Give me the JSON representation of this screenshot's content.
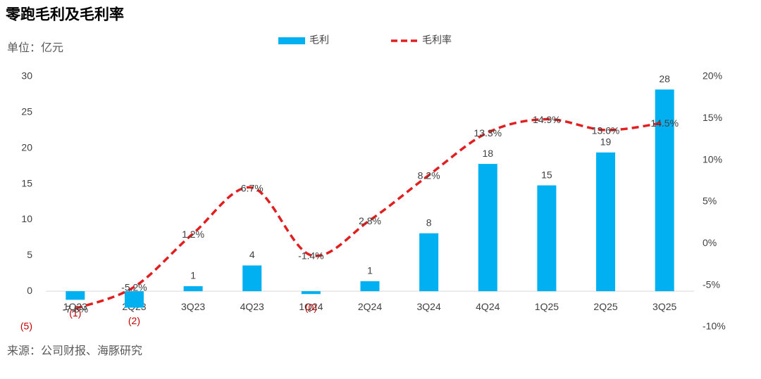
{
  "chart_data": {
    "type": "bar-line",
    "title": "零跑毛利及毛利率",
    "unit_label": "单位：亿元",
    "source": "来源：公司财报、海豚研究",
    "categories": [
      "1Q23",
      "2Q23",
      "3Q23",
      "4Q23",
      "1Q24",
      "2Q24",
      "3Q24",
      "4Q24",
      "1Q25",
      "2Q25",
      "3Q25"
    ],
    "series": [
      {
        "name": "毛利",
        "color": "#00b0f0",
        "type": "bar",
        "values": [
          -1.2,
          -2.3,
          0.7,
          3.6,
          -0.4,
          1.4,
          8.1,
          17.8,
          14.8,
          19.4,
          28.2
        ],
        "value_labels": [
          "(1)",
          "(2)",
          "1",
          "4",
          "(0)",
          "1",
          "8",
          "18",
          "15",
          "19",
          "28"
        ]
      },
      {
        "name": "毛利率",
        "color": "#e02020",
        "type": "line",
        "axis": "y2",
        "values": [
          -7.8,
          -5.2,
          1.2,
          6.7,
          -1.4,
          2.8,
          8.2,
          13.3,
          14.9,
          13.6,
          14.5
        ],
        "value_labels": [
          "-7.8%",
          "-5.2%",
          "1.2%",
          "6.7%",
          "-1.4%",
          "2.8%",
          "8.2%",
          "13.3%",
          "14.9%",
          "13.6%",
          "14.5%"
        ]
      }
    ],
    "negative_label_color": "#c00000",
    "ylim": [
      -5,
      30
    ],
    "yticks": [
      {
        "value": -5,
        "label": "(5)"
      },
      0,
      5,
      10,
      15,
      20,
      25,
      30
    ],
    "y2lim": [
      -10,
      20
    ],
    "y2ticks": [
      {
        "value": -10,
        "label": "-10%"
      },
      {
        "value": -5,
        "label": "-5%"
      },
      {
        "value": 0,
        "label": "0%"
      },
      {
        "value": 5,
        "label": "5%"
      },
      {
        "value": 10,
        "label": "10%"
      },
      {
        "value": 15,
        "label": "15%"
      },
      {
        "value": 20,
        "label": "20%"
      }
    ]
  }
}
